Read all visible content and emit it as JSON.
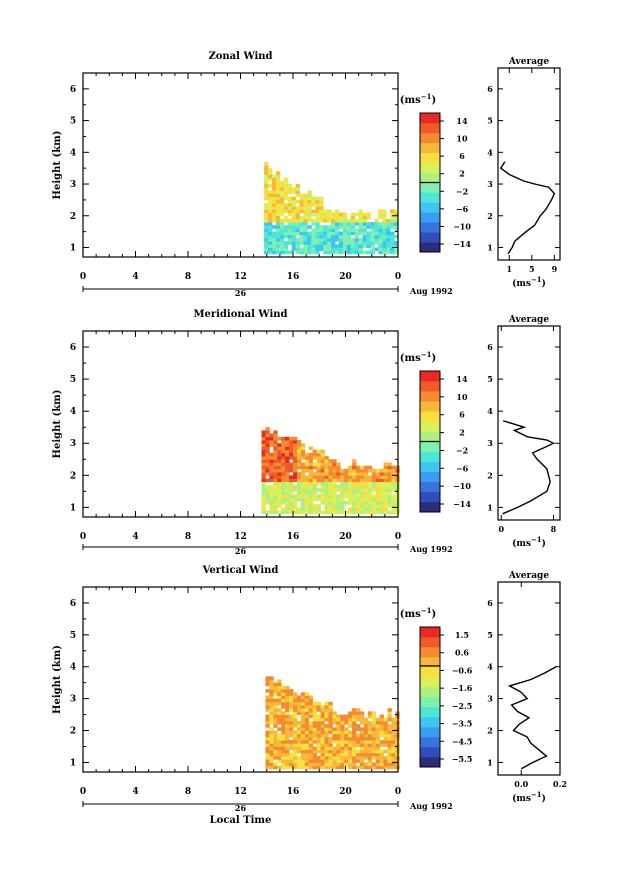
{
  "figure": {
    "xlabel": "Local Time",
    "date_label": "Aug 1992",
    "day_label": "26",
    "height_label": "Height (km)",
    "unit_label": "(ms",
    "unit_sup": "−1",
    "average_title": "Average"
  },
  "colors": {
    "scale": [
      "#2b2c7a",
      "#2f4fb8",
      "#3a72e0",
      "#3a9ef0",
      "#3ec6f0",
      "#4ee6d8",
      "#7ef0b0",
      "#aef080",
      "#dcf05a",
      "#f6e040",
      "#f6b83a",
      "#f68a30",
      "#f05a28",
      "#e82a22"
    ],
    "frame": "#000000"
  },
  "chart_data": [
    {
      "type": "heatmap",
      "title": "Zonal Wind",
      "x_ticks": [
        "0",
        "4",
        "8",
        "12",
        "16",
        "20",
        "0"
      ],
      "xlim": [
        0,
        24
      ],
      "y_ticks": [
        "1",
        "2",
        "3",
        "4",
        "5",
        "6"
      ],
      "ylim": [
        0.7,
        6.5
      ],
      "colorbar": {
        "ticks": [
          "14",
          "10",
          "6",
          "2",
          "−2",
          "−6",
          "−10",
          "−14"
        ],
        "range": [
          -16,
          16
        ]
      },
      "data_extent": {
        "t_start": 13.8,
        "t_end": 24,
        "z_min": 0.8,
        "z_max_early": 3.5,
        "z_max_late": 2.0
      },
      "field": {
        "low_layer": -3,
        "upper_layer": 5,
        "early_upper": 6
      },
      "average": {
        "x_ticks": [
          "1",
          "5",
          "9"
        ],
        "xlim": [
          -1,
          10
        ],
        "profile": [
          [
            0.8,
            0.8
          ],
          [
            1.0,
            1.5
          ],
          [
            1.2,
            2.0
          ],
          [
            1.5,
            4.0
          ],
          [
            1.7,
            5.5
          ],
          [
            2.0,
            6.5
          ],
          [
            2.2,
            7.5
          ],
          [
            2.5,
            8.5
          ],
          [
            2.7,
            9.0
          ],
          [
            2.9,
            8.0
          ],
          [
            3.0,
            5.5
          ],
          [
            3.1,
            3.5
          ],
          [
            3.3,
            1.0
          ],
          [
            3.5,
            -0.5
          ],
          [
            3.7,
            0.2
          ]
        ]
      }
    },
    {
      "type": "heatmap",
      "title": "Meridional Wind",
      "x_ticks": [
        "0",
        "4",
        "8",
        "12",
        "16",
        "20",
        "0"
      ],
      "xlim": [
        0,
        24
      ],
      "y_ticks": [
        "1",
        "2",
        "3",
        "4",
        "5",
        "6"
      ],
      "ylim": [
        0.7,
        6.5
      ],
      "colorbar": {
        "ticks": [
          "14",
          "10",
          "6",
          "2",
          "−2",
          "−6",
          "−10",
          "−14"
        ],
        "range": [
          -16,
          16
        ]
      },
      "data_extent": {
        "t_start": 13.6,
        "t_end": 24,
        "z_min": 0.8,
        "z_max_early": 3.5,
        "z_max_late": 2.3
      },
      "field": {
        "low_layer": 3,
        "upper_layer": 9,
        "early_upper": 12
      },
      "average": {
        "x_ticks": [
          "0",
          "8"
        ],
        "xlim": [
          -0.5,
          9
        ],
        "profile": [
          [
            0.8,
            0.2
          ],
          [
            1.0,
            2.5
          ],
          [
            1.2,
            4.5
          ],
          [
            1.5,
            7.0
          ],
          [
            1.8,
            7.5
          ],
          [
            2.2,
            7.0
          ],
          [
            2.5,
            5.5
          ],
          [
            2.7,
            4.8
          ],
          [
            2.9,
            7.0
          ],
          [
            3.0,
            8.0
          ],
          [
            3.1,
            7.0
          ],
          [
            3.2,
            4.0
          ],
          [
            3.4,
            2.0
          ],
          [
            3.5,
            3.5
          ],
          [
            3.7,
            0.3
          ]
        ]
      }
    },
    {
      "type": "heatmap",
      "title": "Vertical Wind",
      "x_ticks": [
        "0",
        "4",
        "8",
        "12",
        "16",
        "20",
        "0"
      ],
      "xlim": [
        0,
        24
      ],
      "y_ticks": [
        "1",
        "2",
        "3",
        "4",
        "5",
        "6"
      ],
      "ylim": [
        0.7,
        6.5
      ],
      "colorbar": {
        "ticks": [
          "1.5",
          "0.6",
          "−0.6",
          "−1.6",
          "−2.5",
          "−3.5",
          "−4.5",
          "−5.5"
        ],
        "range": [
          -6.5,
          2.5
        ]
      },
      "data_extent": {
        "t_start": 13.9,
        "t_end": 24,
        "z_min": 0.8,
        "z_max_early": 3.7,
        "z_max_late": 2.5
      },
      "field": {
        "low_layer": 0.3,
        "upper_layer": 0.4,
        "early_upper": 0.3
      },
      "average": {
        "x_ticks": [
          "0.0",
          "0.2"
        ],
        "xlim": [
          -0.12,
          0.2
        ],
        "profile": [
          [
            0.8,
            0.0
          ],
          [
            1.0,
            0.06
          ],
          [
            1.2,
            0.13
          ],
          [
            1.4,
            0.09
          ],
          [
            1.6,
            0.05
          ],
          [
            1.8,
            0.03
          ],
          [
            2.0,
            -0.04
          ],
          [
            2.2,
            -0.01
          ],
          [
            2.4,
            0.04
          ],
          [
            2.6,
            -0.02
          ],
          [
            2.8,
            -0.05
          ],
          [
            3.0,
            0.03
          ],
          [
            3.2,
            0.0
          ],
          [
            3.4,
            -0.06
          ],
          [
            3.6,
            0.05
          ],
          [
            3.8,
            0.12
          ],
          [
            4.0,
            0.18
          ]
        ]
      }
    }
  ]
}
